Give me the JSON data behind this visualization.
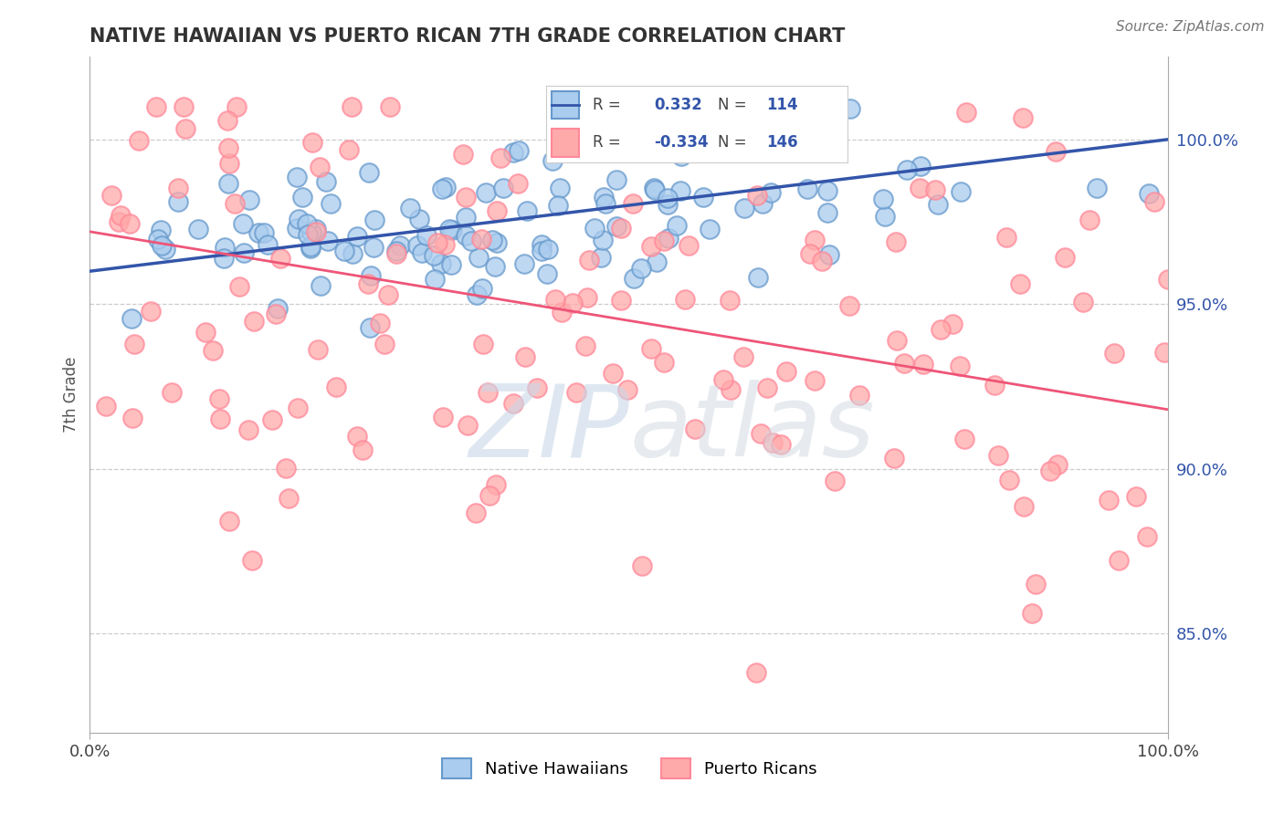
{
  "title": "NATIVE HAWAIIAN VS PUERTO RICAN 7TH GRADE CORRELATION CHART",
  "source": "Source: ZipAtlas.com",
  "ylabel": "7th Grade",
  "yticks": [
    85.0,
    90.0,
    95.0,
    100.0
  ],
  "xlim": [
    0.0,
    100.0
  ],
  "ylim": [
    82.0,
    102.5
  ],
  "blue_R": 0.332,
  "blue_N": 114,
  "pink_R": -0.334,
  "pink_N": 146,
  "blue_color": "#AACCEE",
  "pink_color": "#FFAAAA",
  "blue_edge_color": "#6699CC",
  "pink_edge_color": "#FF8899",
  "blue_line_color": "#3355AA",
  "pink_line_color": "#EE5577",
  "background_color": "#FFFFFF",
  "legend_label_blue": "Native Hawaiians",
  "legend_label_pink": "Puerto Ricans",
  "blue_trend_y0": 96.0,
  "blue_trend_y1": 100.0,
  "pink_trend_y0": 97.2,
  "pink_trend_y1": 91.8
}
